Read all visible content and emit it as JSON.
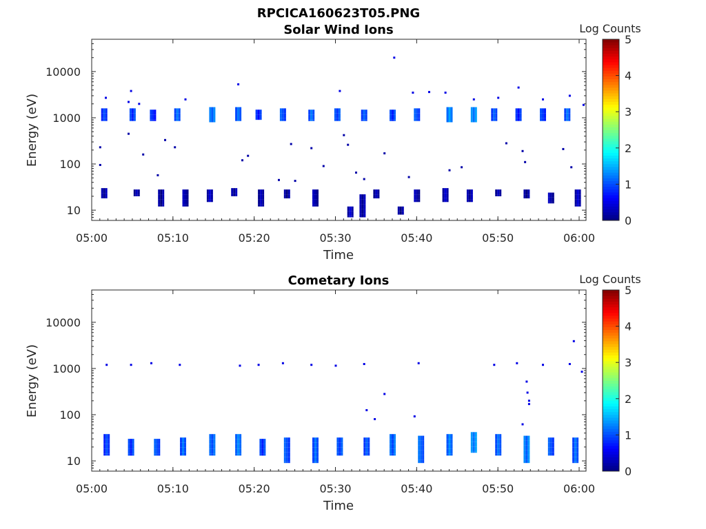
{
  "figure_title": "RPCICA160623T05.PNG",
  "colors": {
    "axis": "#262626",
    "colormap": [
      "#00007f",
      "#0000ff",
      "#007fff",
      "#00ffff",
      "#7fff7f",
      "#ffff00",
      "#ff7f00",
      "#ff0000",
      "#7f0000"
    ]
  },
  "chart_data": [
    {
      "type": "heatmap",
      "title": "Solar Wind Ions",
      "xlabel": "Time",
      "ylabel": "Energy (eV)",
      "y_scale": "log",
      "xlim": [
        "05:00",
        "06:00"
      ],
      "ylim": [
        6,
        50000
      ],
      "x_ticks": [
        "05:00",
        "05:10",
        "05:20",
        "05:30",
        "05:40",
        "05:50",
        "06:00"
      ],
      "y_ticks": [
        "10",
        "100",
        "1000",
        "10000"
      ],
      "colorbar": {
        "label": "Log Counts",
        "range": [
          0,
          5
        ],
        "ticks": [
          "0",
          "1",
          "2",
          "3",
          "4",
          "5"
        ]
      },
      "grid": false,
      "bursts": [
        {
          "t": "05:01.5",
          "e_min": 850,
          "e_max": 1600,
          "v": 0.9
        },
        {
          "t": "05:05.0",
          "e_min": 850,
          "e_max": 1600,
          "v": 1.0
        },
        {
          "t": "05:07.5",
          "e_min": 850,
          "e_max": 1500,
          "v": 0.8
        },
        {
          "t": "05:10.5",
          "e_min": 850,
          "e_max": 1600,
          "v": 1.0
        },
        {
          "t": "05:14.8",
          "e_min": 800,
          "e_max": 1700,
          "v": 1.2
        },
        {
          "t": "05:18.0",
          "e_min": 850,
          "e_max": 1700,
          "v": 1.1
        },
        {
          "t": "05:20.5",
          "e_min": 900,
          "e_max": 1500,
          "v": 0.9
        },
        {
          "t": "05:23.5",
          "e_min": 850,
          "e_max": 1600,
          "v": 1.0
        },
        {
          "t": "05:27.0",
          "e_min": 850,
          "e_max": 1500,
          "v": 1.0
        },
        {
          "t": "05:30.2",
          "e_min": 850,
          "e_max": 1600,
          "v": 1.0
        },
        {
          "t": "05:33.5",
          "e_min": 850,
          "e_max": 1500,
          "v": 1.0
        },
        {
          "t": "05:37.0",
          "e_min": 850,
          "e_max": 1500,
          "v": 1.0
        },
        {
          "t": "05:40.0",
          "e_min": 850,
          "e_max": 1600,
          "v": 1.0
        },
        {
          "t": "05:44.0",
          "e_min": 800,
          "e_max": 1700,
          "v": 1.2
        },
        {
          "t": "05:47.0",
          "e_min": 800,
          "e_max": 1700,
          "v": 1.3
        },
        {
          "t": "05:49.5",
          "e_min": 850,
          "e_max": 1600,
          "v": 1.0
        },
        {
          "t": "05:52.5",
          "e_min": 850,
          "e_max": 1600,
          "v": 0.9
        },
        {
          "t": "05:55.5",
          "e_min": 850,
          "e_max": 1600,
          "v": 0.9
        },
        {
          "t": "05:58.5",
          "e_min": 850,
          "e_max": 1600,
          "v": 1.0
        },
        {
          "t": "05:01.5",
          "e_min": 18,
          "e_max": 30,
          "v": 0.2
        },
        {
          "t": "05:05.5",
          "e_min": 20,
          "e_max": 28,
          "v": 0.2
        },
        {
          "t": "05:08.5",
          "e_min": 12,
          "e_max": 28,
          "v": 0.2
        },
        {
          "t": "05:11.5",
          "e_min": 12,
          "e_max": 28,
          "v": 0.2
        },
        {
          "t": "05:14.5",
          "e_min": 15,
          "e_max": 28,
          "v": 0.2
        },
        {
          "t": "05:17.5",
          "e_min": 20,
          "e_max": 30,
          "v": 0.2
        },
        {
          "t": "05:20.8",
          "e_min": 12,
          "e_max": 28,
          "v": 0.2
        },
        {
          "t": "05:24.0",
          "e_min": 18,
          "e_max": 28,
          "v": 0.2
        },
        {
          "t": "05:27.5",
          "e_min": 12,
          "e_max": 28,
          "v": 0.2
        },
        {
          "t": "05:31.8",
          "e_min": 7,
          "e_max": 12,
          "v": 0.2
        },
        {
          "t": "05:33.3",
          "e_min": 7,
          "e_max": 22,
          "v": 0.2
        },
        {
          "t": "05:35.0",
          "e_min": 18,
          "e_max": 28,
          "v": 0.2
        },
        {
          "t": "05:38.0",
          "e_min": 8,
          "e_max": 12,
          "v": 0.2
        },
        {
          "t": "05:40.0",
          "e_min": 15,
          "e_max": 28,
          "v": 0.2
        },
        {
          "t": "05:43.5",
          "e_min": 15,
          "e_max": 30,
          "v": 0.2
        },
        {
          "t": "05:46.5",
          "e_min": 15,
          "e_max": 28,
          "v": 0.2
        },
        {
          "t": "05:50.0",
          "e_min": 20,
          "e_max": 28,
          "v": 0.2
        },
        {
          "t": "05:53.5",
          "e_min": 18,
          "e_max": 28,
          "v": 0.2
        },
        {
          "t": "05:56.5",
          "e_min": 14,
          "e_max": 24,
          "v": 0.2
        },
        {
          "t": "05:59.8",
          "e_min": 12,
          "e_max": 28,
          "v": 0.2
        }
      ],
      "scatter": [
        {
          "t": "05:01.0",
          "e": 230,
          "v": 0.2
        },
        {
          "t": "05:01.0",
          "e": 95,
          "v": 0.2
        },
        {
          "t": "05:01.7",
          "e": 2700,
          "v": 0.5
        },
        {
          "t": "05:04.5",
          "e": 2200,
          "v": 0.5
        },
        {
          "t": "05:04.8",
          "e": 3800,
          "v": 0.5
        },
        {
          "t": "05:04.5",
          "e": 450,
          "v": 0.2
        },
        {
          "t": "05:05.8",
          "e": 2000,
          "v": 0.5
        },
        {
          "t": "05:06.3",
          "e": 160,
          "v": 0.2
        },
        {
          "t": "05:08.1",
          "e": 57,
          "v": 0.2
        },
        {
          "t": "05:09.0",
          "e": 330,
          "v": 0.2
        },
        {
          "t": "05:10.2",
          "e": 230,
          "v": 0.2
        },
        {
          "t": "05:11.5",
          "e": 2500,
          "v": 0.5
        },
        {
          "t": "05:18.0",
          "e": 5300,
          "v": 0.5
        },
        {
          "t": "05:18.5",
          "e": 120,
          "v": 0.2
        },
        {
          "t": "05:19.2",
          "e": 150,
          "v": 0.2
        },
        {
          "t": "05:23.0",
          "e": 45,
          "v": 0.2
        },
        {
          "t": "05:24.5",
          "e": 270,
          "v": 0.2
        },
        {
          "t": "05:25.0",
          "e": 43,
          "v": 0.2
        },
        {
          "t": "05:27.0",
          "e": 220,
          "v": 0.2
        },
        {
          "t": "05:28.5",
          "e": 90,
          "v": 0.2
        },
        {
          "t": "05:30.5",
          "e": 3800,
          "v": 0.5
        },
        {
          "t": "05:31.0",
          "e": 420,
          "v": 0.2
        },
        {
          "t": "05:31.5",
          "e": 260,
          "v": 0.2
        },
        {
          "t": "05:32.5",
          "e": 65,
          "v": 0.2
        },
        {
          "t": "05:33.5",
          "e": 47,
          "v": 0.2
        },
        {
          "t": "05:36.0",
          "e": 170,
          "v": 0.2
        },
        {
          "t": "05:37.2",
          "e": 20000,
          "v": 0.5
        },
        {
          "t": "05:39.0",
          "e": 52,
          "v": 0.2
        },
        {
          "t": "05:39.5",
          "e": 3500,
          "v": 0.5
        },
        {
          "t": "05:41.5",
          "e": 3600,
          "v": 0.5
        },
        {
          "t": "05:43.5",
          "e": 3500,
          "v": 0.5
        },
        {
          "t": "05:44.0",
          "e": 73,
          "v": 0.2
        },
        {
          "t": "05:45.5",
          "e": 85,
          "v": 0.2
        },
        {
          "t": "05:47.0",
          "e": 2500,
          "v": 0.5
        },
        {
          "t": "05:50.0",
          "e": 2700,
          "v": 0.5
        },
        {
          "t": "05:51.0",
          "e": 280,
          "v": 0.2
        },
        {
          "t": "05:52.5",
          "e": 4500,
          "v": 0.5
        },
        {
          "t": "05:53.0",
          "e": 190,
          "v": 0.2
        },
        {
          "t": "05:53.3",
          "e": 110,
          "v": 0.2
        },
        {
          "t": "05:55.5",
          "e": 2500,
          "v": 0.5
        },
        {
          "t": "05:58.0",
          "e": 210,
          "v": 0.2
        },
        {
          "t": "05:58.8",
          "e": 3000,
          "v": 0.5
        },
        {
          "t": "05:59.0",
          "e": 85,
          "v": 0.2
        },
        {
          "t": "06:00.5",
          "e": 1900,
          "v": 0.5
        }
      ]
    },
    {
      "type": "heatmap",
      "title": "Cometary Ions",
      "xlabel": "Time",
      "ylabel": "Energy (eV)",
      "y_scale": "log",
      "xlim": [
        "05:00",
        "06:00"
      ],
      "ylim": [
        6,
        50000
      ],
      "x_ticks": [
        "05:00",
        "05:10",
        "05:20",
        "05:30",
        "05:40",
        "05:50",
        "06:00"
      ],
      "y_ticks": [
        "10",
        "100",
        "1000",
        "10000"
      ],
      "colorbar": {
        "label": "Log Counts",
        "range": [
          0,
          5
        ],
        "ticks": [
          "0",
          "1",
          "2",
          "3",
          "4",
          "5"
        ]
      },
      "grid": false,
      "bursts": [
        {
          "t": "05:01.8",
          "e_min": 13,
          "e_max": 38,
          "v": 0.9
        },
        {
          "t": "05:04.8",
          "e_min": 13,
          "e_max": 30,
          "v": 1.0
        },
        {
          "t": "05:08.0",
          "e_min": 13,
          "e_max": 30,
          "v": 1.0
        },
        {
          "t": "05:11.2",
          "e_min": 13,
          "e_max": 32,
          "v": 1.0
        },
        {
          "t": "05:14.8",
          "e_min": 13,
          "e_max": 38,
          "v": 1.1
        },
        {
          "t": "05:18.0",
          "e_min": 13,
          "e_max": 38,
          "v": 1.2
        },
        {
          "t": "05:21.0",
          "e_min": 13,
          "e_max": 30,
          "v": 1.0
        },
        {
          "t": "05:24.0",
          "e_min": 9,
          "e_max": 32,
          "v": 1.0
        },
        {
          "t": "05:27.5",
          "e_min": 9,
          "e_max": 32,
          "v": 1.0
        },
        {
          "t": "05:30.5",
          "e_min": 13,
          "e_max": 32,
          "v": 1.0
        },
        {
          "t": "05:33.8",
          "e_min": 13,
          "e_max": 32,
          "v": 1.0
        },
        {
          "t": "05:37.0",
          "e_min": 13,
          "e_max": 38,
          "v": 1.2
        },
        {
          "t": "05:40.5",
          "e_min": 9,
          "e_max": 35,
          "v": 1.1
        },
        {
          "t": "05:44.0",
          "e_min": 13,
          "e_max": 38,
          "v": 1.1
        },
        {
          "t": "05:47.0",
          "e_min": 15,
          "e_max": 42,
          "v": 1.3
        },
        {
          "t": "05:50.0",
          "e_min": 13,
          "e_max": 38,
          "v": 1.1
        },
        {
          "t": "05:53.5",
          "e_min": 9,
          "e_max": 35,
          "v": 1.3
        },
        {
          "t": "05:56.5",
          "e_min": 13,
          "e_max": 32,
          "v": 1.0
        },
        {
          "t": "05:59.5",
          "e_min": 9,
          "e_max": 32,
          "v": 1.0
        }
      ],
      "scatter": [
        {
          "t": "05:01.8",
          "e": 1200,
          "v": 0.5
        },
        {
          "t": "05:04.8",
          "e": 1200,
          "v": 0.5
        },
        {
          "t": "05:07.3",
          "e": 1300,
          "v": 0.5
        },
        {
          "t": "05:10.8",
          "e": 1200,
          "v": 0.5
        },
        {
          "t": "05:18.2",
          "e": 1150,
          "v": 0.5
        },
        {
          "t": "05:20.5",
          "e": 1200,
          "v": 0.5
        },
        {
          "t": "05:23.5",
          "e": 1300,
          "v": 0.5
        },
        {
          "t": "05:27.0",
          "e": 1200,
          "v": 0.5
        },
        {
          "t": "05:30.0",
          "e": 1150,
          "v": 0.5
        },
        {
          "t": "05:33.5",
          "e": 1250,
          "v": 0.5
        },
        {
          "t": "05:33.8",
          "e": 125,
          "v": 0.5
        },
        {
          "t": "05:34.8",
          "e": 80,
          "v": 0.5
        },
        {
          "t": "05:36.0",
          "e": 280,
          "v": 0.5
        },
        {
          "t": "05:39.7",
          "e": 92,
          "v": 0.5
        },
        {
          "t": "05:40.2",
          "e": 1300,
          "v": 0.5
        },
        {
          "t": "05:49.5",
          "e": 1200,
          "v": 0.5
        },
        {
          "t": "05:52.3",
          "e": 1300,
          "v": 0.5
        },
        {
          "t": "05:53.0",
          "e": 62,
          "v": 0.5
        },
        {
          "t": "05:53.5",
          "e": 520,
          "v": 0.5
        },
        {
          "t": "05:53.6",
          "e": 300,
          "v": 0.5
        },
        {
          "t": "05:53.8",
          "e": 200,
          "v": 0.5
        },
        {
          "t": "05:53.8",
          "e": 170,
          "v": 0.5
        },
        {
          "t": "05:55.5",
          "e": 1200,
          "v": 0.5
        },
        {
          "t": "05:58.8",
          "e": 1250,
          "v": 0.5
        },
        {
          "t": "05:59.3",
          "e": 3900,
          "v": 0.5
        },
        {
          "t": "06:00.3",
          "e": 850,
          "v": 0.5
        }
      ]
    }
  ]
}
